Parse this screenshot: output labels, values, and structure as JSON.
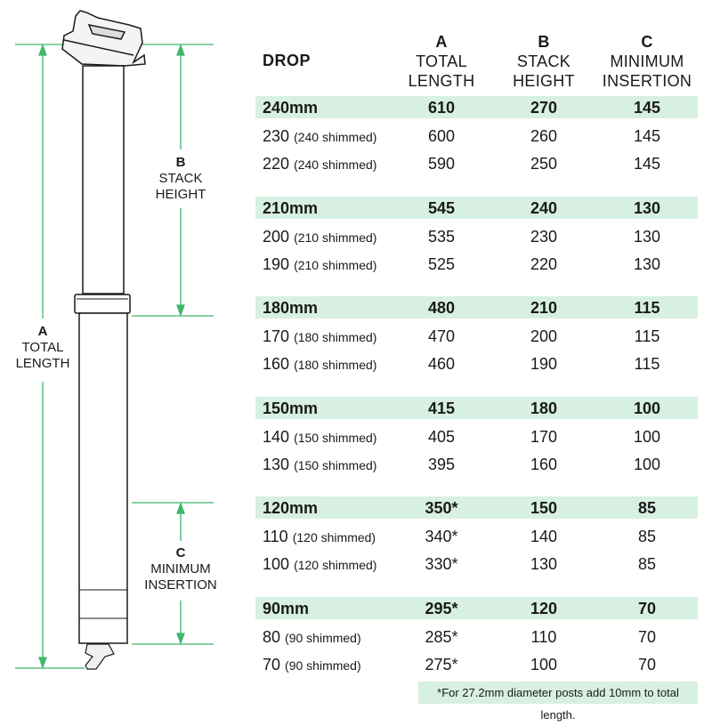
{
  "colors": {
    "accent": "#3fb66b",
    "highlight": "#d7f0e1",
    "ink": "#1a1a1a"
  },
  "diagram": {
    "a": {
      "letter": "A",
      "line1": "TOTAL",
      "line2": "LENGTH"
    },
    "b": {
      "letter": "B",
      "line1": "STACK",
      "line2": "HEIGHT"
    },
    "c": {
      "letter": "C",
      "line1": "MINIMUM",
      "line2": "INSERTION"
    }
  },
  "table": {
    "headers": {
      "drop": "DROP",
      "a": {
        "letter": "A",
        "line1": "TOTAL",
        "line2": "LENGTH"
      },
      "b": {
        "letter": "B",
        "line1": "STACK",
        "line2": "HEIGHT"
      },
      "c": {
        "letter": "C",
        "line1": "MINIMUM",
        "line2": "INSERTION"
      }
    },
    "groups": [
      {
        "rows": [
          {
            "drop": "240mm",
            "note": "",
            "a": "610",
            "b": "270",
            "c": "145"
          },
          {
            "drop": "230",
            "note": "(240 shimmed)",
            "a": "600",
            "b": "260",
            "c": "145"
          },
          {
            "drop": "220",
            "note": "(240 shimmed)",
            "a": "590",
            "b": "250",
            "c": "145"
          }
        ]
      },
      {
        "rows": [
          {
            "drop": "210mm",
            "note": "",
            "a": "545",
            "b": "240",
            "c": "130"
          },
          {
            "drop": "200",
            "note": "(210 shimmed)",
            "a": "535",
            "b": "230",
            "c": "130"
          },
          {
            "drop": "190",
            "note": "(210 shimmed)",
            "a": "525",
            "b": "220",
            "c": "130"
          }
        ]
      },
      {
        "rows": [
          {
            "drop": "180mm",
            "note": "",
            "a": "480",
            "b": "210",
            "c": "115"
          },
          {
            "drop": "170",
            "note": "(180 shimmed)",
            "a": "470",
            "b": "200",
            "c": "115"
          },
          {
            "drop": "160",
            "note": "(180 shimmed)",
            "a": "460",
            "b": "190",
            "c": "115"
          }
        ]
      },
      {
        "rows": [
          {
            "drop": "150mm",
            "note": "",
            "a": "415",
            "b": "180",
            "c": "100"
          },
          {
            "drop": "140",
            "note": "(150 shimmed)",
            "a": "405",
            "b": "170",
            "c": "100"
          },
          {
            "drop": "130",
            "note": "(150 shimmed)",
            "a": "395",
            "b": "160",
            "c": "100"
          }
        ]
      },
      {
        "rows": [
          {
            "drop": "120mm",
            "note": "",
            "a": "350*",
            "b": "150",
            "c": "85"
          },
          {
            "drop": "110",
            "note": "(120 shimmed)",
            "a": "340*",
            "b": "140",
            "c": "85"
          },
          {
            "drop": "100",
            "note": "(120 shimmed)",
            "a": "330*",
            "b": "130",
            "c": "85"
          }
        ]
      },
      {
        "rows": [
          {
            "drop": "90mm",
            "note": "",
            "a": "295*",
            "b": "120",
            "c": "70"
          },
          {
            "drop": "80",
            "note": "(90 shimmed)",
            "a": "285*",
            "b": "110",
            "c": "70"
          },
          {
            "drop": "70",
            "note": "(90 shimmed)",
            "a": "275*",
            "b": "100",
            "c": "70"
          }
        ]
      }
    ],
    "footnote": "*For 27.2mm diameter posts add 10mm to total length."
  }
}
